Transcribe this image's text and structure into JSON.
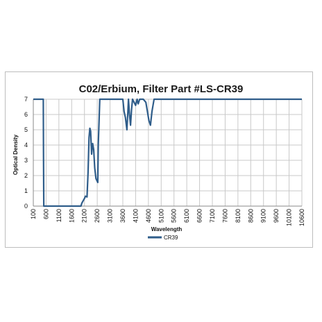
{
  "chart_data": {
    "type": "line",
    "title": "C02/Erbium, Filter Part #LS-CR39",
    "xlabel": "Wavelength",
    "ylabel": "Optical Density",
    "ylim": [
      0,
      7
    ],
    "xlim": [
      100,
      10600
    ],
    "x_ticks": [
      "100",
      "600",
      "1100",
      "1600",
      "2100",
      "2600",
      "3100",
      "3600",
      "4100",
      "4600",
      "5100",
      "5600",
      "6100",
      "6600",
      "7100",
      "7600",
      "8100",
      "8600",
      "9100",
      "9600",
      "10100",
      "10600"
    ],
    "y_ticks": [
      "0",
      "1",
      "2",
      "3",
      "4",
      "5",
      "6",
      "7"
    ],
    "grid": true,
    "legend": "bottom",
    "series": [
      {
        "name": "CR39",
        "color": "#2f5d8a",
        "x": [
          100,
          490,
          500,
          510,
          1800,
          1960,
          2000,
          2100,
          2140,
          2200,
          2240,
          2280,
          2310,
          2340,
          2380,
          2420,
          2460,
          2500,
          2550,
          2620,
          2640,
          2700,
          2760,
          3600,
          3650,
          3700,
          3760,
          3800,
          3820,
          3860,
          3900,
          3940,
          3980,
          4040,
          4100,
          4160,
          4200,
          4260,
          4320,
          4400,
          4500,
          4560,
          4620,
          4680,
          4740,
          4820,
          4880,
          10600
        ],
        "y": [
          7,
          7,
          3.5,
          0,
          0,
          0,
          0.2,
          0.5,
          0.65,
          0.6,
          2.2,
          4.5,
          5.1,
          4.9,
          3.4,
          4.1,
          3.7,
          2.5,
          1.8,
          1.55,
          4.0,
          7,
          7,
          7,
          6.2,
          5.8,
          5.0,
          6.3,
          7,
          6.0,
          5.3,
          6.3,
          7,
          6.8,
          6.6,
          7,
          6.7,
          7,
          7,
          7,
          6.8,
          6.2,
          5.6,
          5.3,
          6.2,
          7,
          7,
          7
        ]
      }
    ]
  }
}
